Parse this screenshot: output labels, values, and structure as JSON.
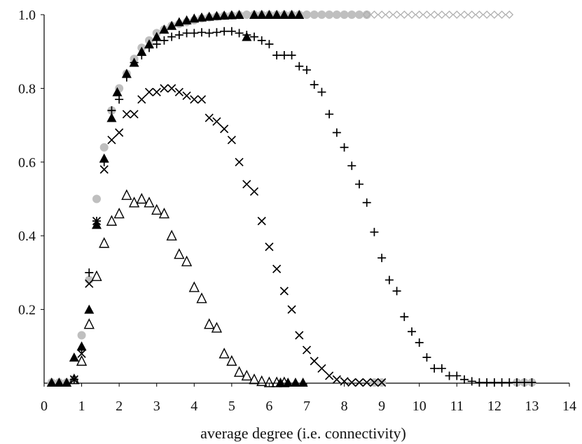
{
  "chart_data": {
    "type": "scatter",
    "title": "",
    "xlabel": "average degree (i.e. connectivity)",
    "ylabel": "",
    "xlim": [
      0,
      14
    ],
    "ylim": [
      0,
      1
    ],
    "x_ticks": [
      "0",
      "1",
      "2",
      "3",
      "4",
      "5",
      "6",
      "7",
      "8",
      "9",
      "10",
      "11",
      "12",
      "13",
      "14"
    ],
    "y_ticks": [
      "0.2",
      "0.4",
      "0.6",
      "0.8",
      "1.0"
    ],
    "grid": false,
    "legend": "none",
    "series": [
      {
        "marker": "circle-filled",
        "color": "#bfbfbf",
        "points": [
          [
            0.2,
            0
          ],
          [
            0.4,
            0
          ],
          [
            0.6,
            0
          ],
          [
            0.8,
            0.01
          ],
          [
            1.0,
            0.13
          ],
          [
            1.2,
            0.28
          ],
          [
            1.4,
            0.5
          ],
          [
            1.6,
            0.64
          ],
          [
            1.8,
            0.74
          ],
          [
            2.0,
            0.8
          ],
          [
            2.2,
            0.84
          ],
          [
            2.4,
            0.88
          ],
          [
            2.6,
            0.91
          ],
          [
            2.8,
            0.93
          ],
          [
            3.0,
            0.95
          ],
          [
            3.2,
            0.96
          ],
          [
            3.4,
            0.97
          ],
          [
            3.6,
            0.975
          ],
          [
            3.8,
            0.98
          ],
          [
            4.0,
            0.985
          ],
          [
            4.2,
            0.99
          ],
          [
            4.4,
            0.993
          ],
          [
            4.6,
            0.995
          ],
          [
            4.8,
            0.997
          ],
          [
            5.0,
            0.998
          ],
          [
            5.2,
            0.999
          ],
          [
            5.4,
            1.0
          ],
          [
            5.6,
            1.0
          ],
          [
            5.8,
            1.0
          ],
          [
            6.0,
            1.0
          ],
          [
            6.2,
            1.0
          ],
          [
            6.4,
            1.0
          ],
          [
            6.6,
            1.0
          ],
          [
            6.8,
            1.0
          ],
          [
            7.0,
            1.0
          ],
          [
            7.2,
            1.0
          ],
          [
            7.4,
            1.0
          ],
          [
            7.6,
            1.0
          ],
          [
            7.8,
            1.0
          ],
          [
            8.0,
            1.0
          ],
          [
            8.2,
            1.0
          ],
          [
            8.4,
            1.0
          ],
          [
            8.6,
            1.0
          ],
          [
            8.8,
            0
          ],
          [
            9.0,
            0
          ],
          [
            12.6,
            0
          ],
          [
            12.8,
            0
          ],
          [
            13.0,
            0
          ]
        ]
      },
      {
        "marker": "diamond-open",
        "color": "#b0b0b0",
        "points": [
          [
            8.6,
            1.0
          ],
          [
            8.8,
            1.0
          ],
          [
            9.0,
            1.0
          ],
          [
            9.2,
            1.0
          ],
          [
            9.4,
            1.0
          ],
          [
            9.6,
            1.0
          ],
          [
            9.8,
            1.0
          ],
          [
            10.0,
            1.0
          ],
          [
            10.2,
            1.0
          ],
          [
            10.4,
            1.0
          ],
          [
            10.6,
            1.0
          ],
          [
            10.8,
            1.0
          ],
          [
            11.0,
            1.0
          ],
          [
            11.2,
            1.0
          ],
          [
            11.4,
            1.0
          ],
          [
            11.6,
            1.0
          ],
          [
            11.8,
            1.0
          ],
          [
            12.0,
            1.0
          ],
          [
            12.2,
            1.0
          ],
          [
            12.4,
            1.0
          ]
        ]
      },
      {
        "marker": "triangle-filled",
        "color": "#000000",
        "points": [
          [
            0.2,
            0
          ],
          [
            0.4,
            0
          ],
          [
            0.6,
            0
          ],
          [
            0.8,
            0.07
          ],
          [
            1.0,
            0.1
          ],
          [
            1.2,
            0.2
          ],
          [
            1.4,
            0.43
          ],
          [
            1.6,
            0.61
          ],
          [
            1.8,
            0.72
          ],
          [
            1.95,
            0.79
          ],
          [
            2.2,
            0.84
          ],
          [
            2.4,
            0.87
          ],
          [
            2.6,
            0.9
          ],
          [
            2.8,
            0.92
          ],
          [
            3.0,
            0.94
          ],
          [
            3.2,
            0.96
          ],
          [
            3.4,
            0.97
          ],
          [
            3.6,
            0.98
          ],
          [
            3.8,
            0.985
          ],
          [
            4.0,
            0.99
          ],
          [
            4.2,
            0.993
          ],
          [
            4.4,
            0.995
          ],
          [
            4.6,
            0.997
          ],
          [
            4.8,
            0.998
          ],
          [
            5.0,
            0.999
          ],
          [
            5.2,
            1.0
          ],
          [
            5.4,
            0.94
          ],
          [
            5.6,
            1.0
          ],
          [
            5.8,
            1.0
          ],
          [
            6.0,
            1.0
          ],
          [
            6.2,
            1.0
          ],
          [
            6.4,
            1.0
          ],
          [
            6.6,
            1.0
          ],
          [
            6.8,
            1.0
          ],
          [
            6.3,
            0
          ],
          [
            6.5,
            0
          ],
          [
            6.7,
            0
          ],
          [
            6.9,
            0
          ]
        ]
      },
      {
        "marker": "plus",
        "color": "#000000",
        "points": [
          [
            0.8,
            0.01
          ],
          [
            1.0,
            0.09
          ],
          [
            1.2,
            0.3
          ],
          [
            1.4,
            0.44
          ],
          [
            1.6,
            0.6
          ],
          [
            1.8,
            0.74
          ],
          [
            2.0,
            0.77
          ],
          [
            2.2,
            0.83
          ],
          [
            2.4,
            0.87
          ],
          [
            2.6,
            0.89
          ],
          [
            2.8,
            0.91
          ],
          [
            3.0,
            0.92
          ],
          [
            3.2,
            0.93
          ],
          [
            3.4,
            0.94
          ],
          [
            3.6,
            0.945
          ],
          [
            3.8,
            0.95
          ],
          [
            4.0,
            0.95
          ],
          [
            4.2,
            0.952
          ],
          [
            4.4,
            0.95
          ],
          [
            4.6,
            0.952
          ],
          [
            4.8,
            0.955
          ],
          [
            5.0,
            0.955
          ],
          [
            5.2,
            0.95
          ],
          [
            5.4,
            0.945
          ],
          [
            5.6,
            0.94
          ],
          [
            5.8,
            0.93
          ],
          [
            6.0,
            0.92
          ],
          [
            6.2,
            0.89
          ],
          [
            6.4,
            0.89
          ],
          [
            6.6,
            0.89
          ],
          [
            6.8,
            0.86
          ],
          [
            7.0,
            0.85
          ],
          [
            7.2,
            0.81
          ],
          [
            7.4,
            0.79
          ],
          [
            7.6,
            0.73
          ],
          [
            7.8,
            0.68
          ],
          [
            8.0,
            0.64
          ],
          [
            8.2,
            0.59
          ],
          [
            8.4,
            0.54
          ],
          [
            8.6,
            0.49
          ],
          [
            8.8,
            0.41
          ],
          [
            9.0,
            0.34
          ],
          [
            9.2,
            0.28
          ],
          [
            9.4,
            0.25
          ],
          [
            9.6,
            0.18
          ],
          [
            9.8,
            0.14
          ],
          [
            10.0,
            0.11
          ],
          [
            10.2,
            0.07
          ],
          [
            10.4,
            0.04
          ],
          [
            10.6,
            0.04
          ],
          [
            10.8,
            0.02
          ],
          [
            11.0,
            0.02
          ],
          [
            11.2,
            0.01
          ],
          [
            11.4,
            0.005
          ],
          [
            11.6,
            0.002
          ],
          [
            11.8,
            0
          ],
          [
            12.0,
            0
          ],
          [
            12.2,
            0
          ],
          [
            12.4,
            0
          ],
          [
            12.6,
            0
          ],
          [
            12.8,
            0
          ],
          [
            13.0,
            0
          ]
        ]
      },
      {
        "marker": "cross",
        "color": "#000000",
        "points": [
          [
            0.8,
            0.01
          ],
          [
            1.0,
            0.08
          ],
          [
            1.2,
            0.27
          ],
          [
            1.4,
            0.44
          ],
          [
            1.6,
            0.58
          ],
          [
            1.8,
            0.66
          ],
          [
            2.0,
            0.68
          ],
          [
            2.2,
            0.73
          ],
          [
            2.4,
            0.73
          ],
          [
            2.6,
            0.77
          ],
          [
            2.8,
            0.79
          ],
          [
            3.0,
            0.79
          ],
          [
            3.2,
            0.8
          ],
          [
            3.4,
            0.8
          ],
          [
            3.6,
            0.79
          ],
          [
            3.8,
            0.78
          ],
          [
            4.0,
            0.77
          ],
          [
            4.2,
            0.77
          ],
          [
            4.4,
            0.72
          ],
          [
            4.6,
            0.71
          ],
          [
            4.8,
            0.69
          ],
          [
            5.0,
            0.66
          ],
          [
            5.2,
            0.6
          ],
          [
            5.4,
            0.54
          ],
          [
            5.6,
            0.52
          ],
          [
            5.8,
            0.44
          ],
          [
            6.0,
            0.37
          ],
          [
            6.2,
            0.31
          ],
          [
            6.4,
            0.25
          ],
          [
            6.6,
            0.2
          ],
          [
            6.8,
            0.13
          ],
          [
            7.0,
            0.09
          ],
          [
            7.2,
            0.06
          ],
          [
            7.4,
            0.04
          ],
          [
            7.6,
            0.02
          ],
          [
            7.8,
            0.01
          ],
          [
            8.0,
            0.005
          ],
          [
            8.2,
            0
          ],
          [
            8.4,
            0
          ],
          [
            8.6,
            0
          ],
          [
            8.8,
            0
          ],
          [
            9.0,
            0
          ]
        ]
      },
      {
        "marker": "triangle-open",
        "color": "#000000",
        "points": [
          [
            0.8,
            0.01
          ],
          [
            1.0,
            0.06
          ],
          [
            1.2,
            0.16
          ],
          [
            1.4,
            0.29
          ],
          [
            1.6,
            0.38
          ],
          [
            1.8,
            0.44
          ],
          [
            2.0,
            0.46
          ],
          [
            2.2,
            0.51
          ],
          [
            2.4,
            0.49
          ],
          [
            2.6,
            0.5
          ],
          [
            2.8,
            0.49
          ],
          [
            3.0,
            0.47
          ],
          [
            3.2,
            0.46
          ],
          [
            3.4,
            0.4
          ],
          [
            3.6,
            0.35
          ],
          [
            3.8,
            0.33
          ],
          [
            4.0,
            0.26
          ],
          [
            4.2,
            0.23
          ],
          [
            4.4,
            0.16
          ],
          [
            4.6,
            0.15
          ],
          [
            4.8,
            0.08
          ],
          [
            5.0,
            0.06
          ],
          [
            5.2,
            0.03
          ],
          [
            5.4,
            0.02
          ],
          [
            5.6,
            0.01
          ],
          [
            5.8,
            0.005
          ],
          [
            6.0,
            0
          ],
          [
            6.2,
            0
          ],
          [
            6.4,
            0
          ]
        ]
      }
    ]
  }
}
